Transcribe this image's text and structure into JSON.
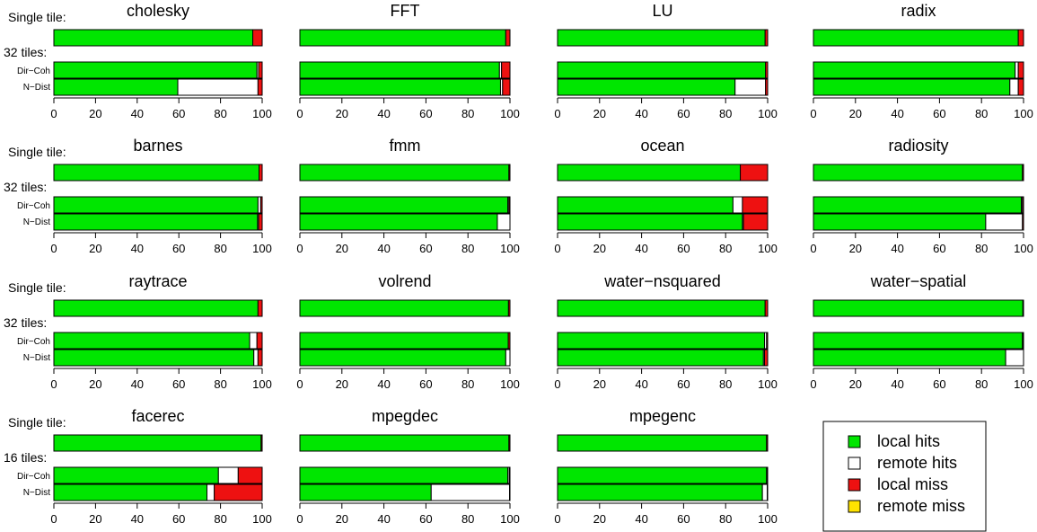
{
  "chart_data": {
    "type": "bar",
    "orientation": "horizontal",
    "stacked": true,
    "xlim": [
      0,
      100
    ],
    "xticks": [
      0,
      20,
      40,
      60,
      80,
      100
    ],
    "segment_order": [
      "local hits",
      "remote hits",
      "local miss",
      "remote miss"
    ],
    "legend": {
      "position": "bottom-right",
      "entries": [
        {
          "label": "local hits",
          "color": "#00e600"
        },
        {
          "label": "remote hits",
          "color": "#ffffff"
        },
        {
          "label": "local miss",
          "color": "#ee1111"
        },
        {
          "label": "remote miss",
          "color": "#ffe300"
        }
      ]
    },
    "colors": {
      "local_hits": "#00e600",
      "remote_hits": "#ffffff",
      "local_miss": "#ee1111",
      "remote_miss": "#ffe300"
    },
    "row_labels": {
      "single": "Single tile:",
      "dir": "Dir−Coh",
      "ndist": "N−Dist"
    },
    "rows": [
      {
        "group_label": "32 tiles:",
        "panels": [
          {
            "title": "cholesky",
            "single": [
              95.5,
              0,
              4.5,
              0
            ],
            "dir": [
              97.5,
              0.8,
              1.7,
              0
            ],
            "ndist": [
              59.5,
              38.5,
              2,
              0
            ]
          },
          {
            "title": "FFT",
            "single": [
              98,
              0,
              2,
              0
            ],
            "dir": [
              95,
              1,
              4,
              0
            ],
            "ndist": [
              95.5,
              1,
              3.5,
              0
            ]
          },
          {
            "title": "LU",
            "single": [
              98.8,
              0,
              1.2,
              0
            ],
            "dir": [
              99,
              0,
              1,
              0
            ],
            "ndist": [
              84.5,
              14.5,
              1,
              0
            ]
          },
          {
            "title": "radix",
            "single": [
              97.5,
              0,
              2.5,
              0
            ],
            "dir": [
              96,
              1.5,
              2.5,
              0
            ],
            "ndist": [
              93.5,
              4,
              2.5,
              0
            ]
          }
        ]
      },
      {
        "group_label": "32 tiles:",
        "panels": [
          {
            "title": "barnes",
            "single": [
              98.5,
              0,
              1.5,
              0
            ],
            "dir": [
              98,
              1.3,
              0.7,
              0
            ],
            "ndist": [
              97.8,
              0.5,
              1.7,
              0
            ]
          },
          {
            "title": "fmm",
            "single": [
              99.5,
              0,
              0.5,
              0
            ],
            "dir": [
              99,
              0.5,
              0.5,
              0
            ],
            "ndist": [
              94,
              6,
              0,
              0
            ]
          },
          {
            "title": "ocean",
            "single": [
              87,
              0,
              13,
              0
            ],
            "dir": [
              83.5,
              4.5,
              12,
              0
            ],
            "ndist": [
              88,
              0.5,
              11.5,
              0
            ]
          },
          {
            "title": "radiosity",
            "single": [
              99.5,
              0,
              0.5,
              0
            ],
            "dir": [
              99,
              0.5,
              0.5,
              0
            ],
            "ndist": [
              82,
              17.5,
              0.5,
              0
            ]
          }
        ]
      },
      {
        "group_label": "32 tiles:",
        "panels": [
          {
            "title": "raytrace",
            "single": [
              98,
              0,
              2,
              0
            ],
            "dir": [
              94,
              3.5,
              2.5,
              0
            ],
            "ndist": [
              96,
              2,
              2,
              0
            ]
          },
          {
            "title": "volrend",
            "single": [
              99.3,
              0,
              0.7,
              0
            ],
            "dir": [
              99.2,
              0,
              0.8,
              0
            ],
            "ndist": [
              98,
              2,
              0,
              0
            ]
          },
          {
            "title": "water−nsquared",
            "single": [
              98.8,
              0,
              1.2,
              0
            ],
            "dir": [
              98.5,
              1,
              0.5,
              0
            ],
            "ndist": [
              98,
              0.5,
              1.5,
              0
            ]
          },
          {
            "title": "water−spatial",
            "single": [
              99.7,
              0,
              0.3,
              0
            ],
            "dir": [
              99.5,
              0.3,
              0.2,
              0
            ],
            "ndist": [
              91.5,
              8.5,
              0,
              0
            ]
          }
        ]
      },
      {
        "group_label": "16 tiles:",
        "panels": [
          {
            "title": "facerec",
            "single": [
              99.5,
              0,
              0.5,
              0
            ],
            "dir": [
              79,
              9.5,
              11.5,
              0
            ],
            "ndist": [
              73.5,
              3.5,
              23,
              0
            ]
          },
          {
            "title": "mpegdec",
            "single": [
              99.5,
              0,
              0.5,
              0
            ],
            "dir": [
              99,
              0.7,
              0.3,
              0
            ],
            "ndist": [
              62.5,
              37.3,
              0.2,
              0
            ]
          },
          {
            "title": "mpegenc",
            "single": [
              99.5,
              0,
              0.5,
              0
            ],
            "dir": [
              99.5,
              0.3,
              0.2,
              0
            ],
            "ndist": [
              97.5,
              2.3,
              0.2,
              0
            ]
          }
        ]
      }
    ]
  }
}
